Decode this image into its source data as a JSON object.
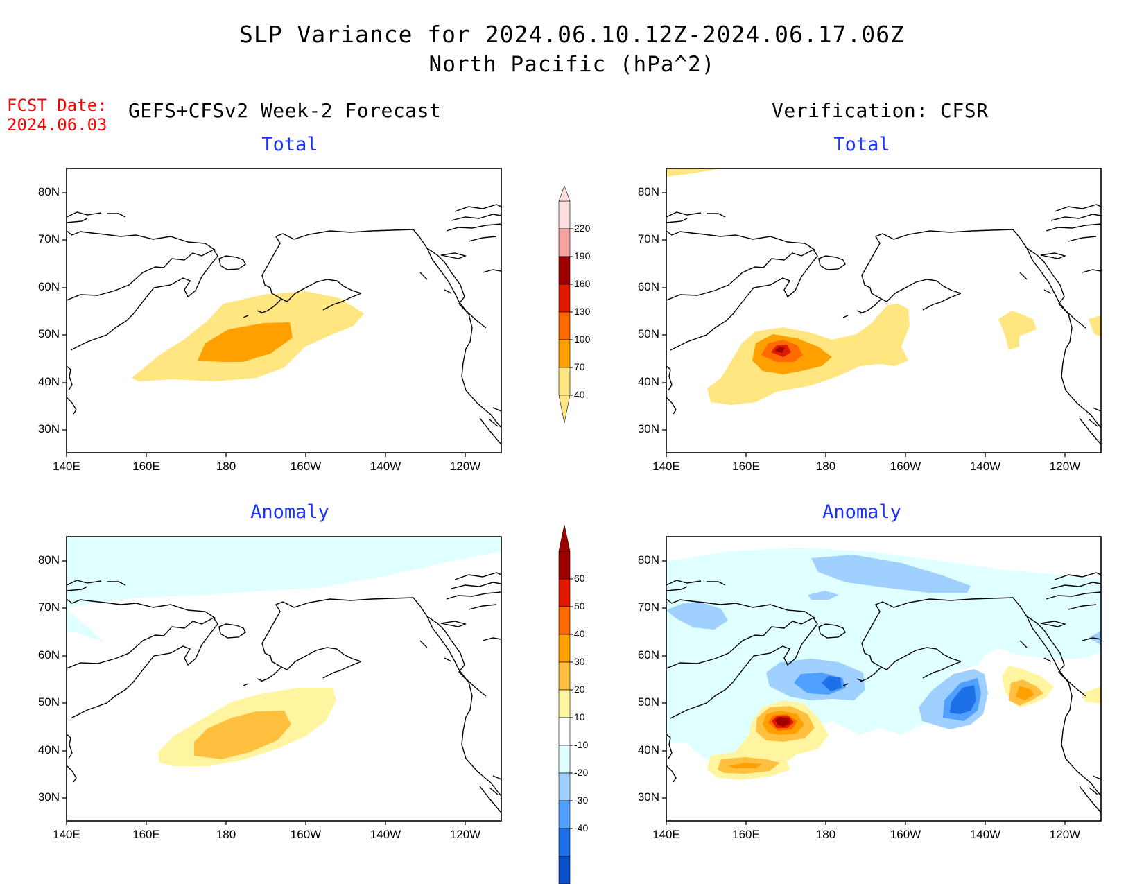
{
  "title": {
    "line1": "SLP Variance for 2024.06.10.12Z-2024.06.17.06Z",
    "line2": "North Pacific (hPa^2)"
  },
  "fcst_date": {
    "label": "FCST Date:",
    "value": "2024.06.03"
  },
  "left_column_title": "GEFS+CFSv2 Week-2 Forecast",
  "right_column_title": "Verification: CFSR",
  "panels": {
    "fcst_total": {
      "subtitle": "Total"
    },
    "obs_total": {
      "subtitle": "Total"
    },
    "fcst_anom": {
      "subtitle": "Anomaly"
    },
    "obs_anom": {
      "subtitle": "Anomaly"
    }
  },
  "axes": {
    "lat_ticks": [
      "80N",
      "70N",
      "60N",
      "50N",
      "40N",
      "30N"
    ],
    "lon_ticks": [
      "140E",
      "160E",
      "180",
      "160W",
      "140W",
      "120W"
    ]
  },
  "colorbar_total": {
    "labels": [
      "220",
      "190",
      "160",
      "130",
      "100",
      "70",
      "40"
    ],
    "colors": [
      "#fde0e0",
      "#f4a3a3",
      "#a00000",
      "#e01a00",
      "#ff6a00",
      "#ffa000",
      "#ffe680"
    ]
  },
  "colorbar_anom": {
    "labels": [
      "60",
      "50",
      "40",
      "30",
      "20",
      "10",
      "-10",
      "-20",
      "-30",
      "-40"
    ],
    "colors": [
      "#a00000",
      "#e01a00",
      "#ff6a00",
      "#ffa000",
      "#ffc040",
      "#fff5a0",
      "#ffffff",
      "#e0ffff",
      "#a0d0ff",
      "#50a0ff",
      "#1e70e8",
      "#0a50c8"
    ]
  }
}
